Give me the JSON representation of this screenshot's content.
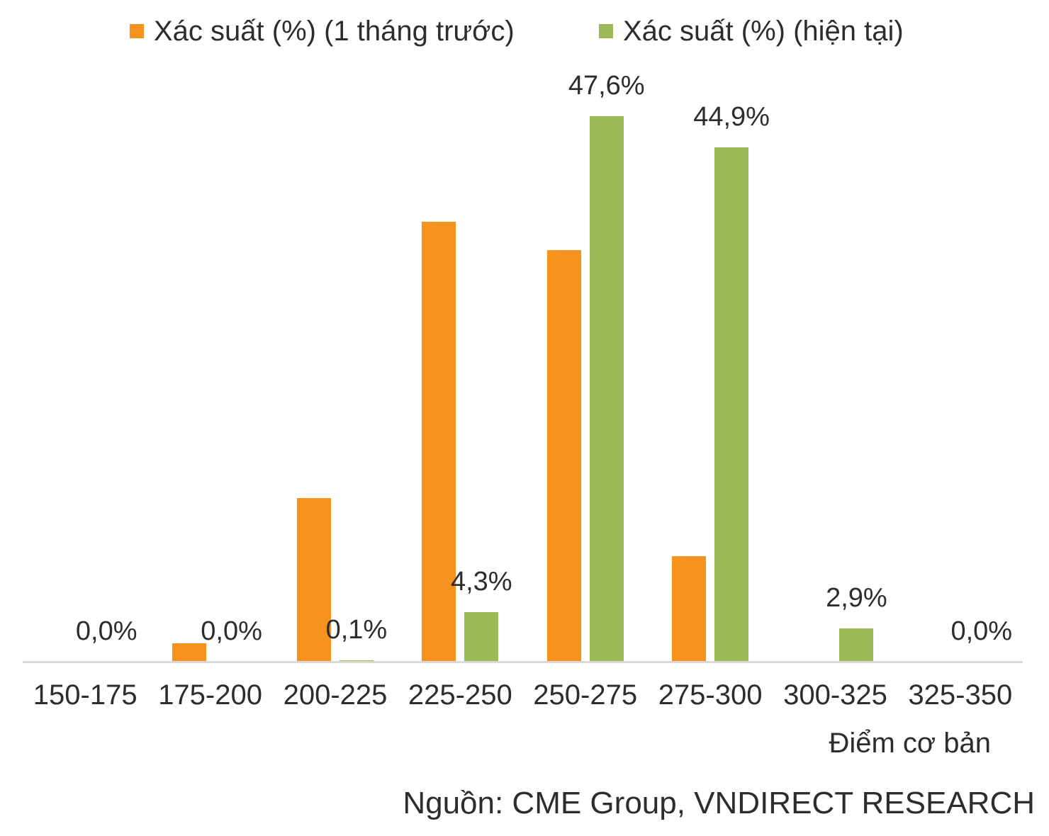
{
  "legend": [
    {
      "label": "Xác suất (%) (1 tháng trước)",
      "color": "#F6921E"
    },
    {
      "label": "Xác suất (%) (hiện tại)",
      "color": "#9BBB59"
    }
  ],
  "chart_data": {
    "type": "bar",
    "categories": [
      "150-175",
      "175-200",
      "200-225",
      "225-250",
      "250-275",
      "275-300",
      "300-325",
      "325-350"
    ],
    "series": [
      {
        "name": "Xác suất (%) (1 tháng trước)",
        "color": "#F6921E",
        "show_labels": false,
        "values": [
          0.0,
          1.6,
          14.3,
          38.4,
          35.9,
          9.2,
          0.0,
          0.0
        ]
      },
      {
        "name": "Xác suất (%) (hiện tại)",
        "color": "#9BBB59",
        "show_labels": true,
        "values": [
          0.0,
          0.0,
          0.1,
          4.3,
          47.6,
          44.9,
          2.9,
          0.0
        ],
        "labels": [
          "0,0%",
          "0,0%",
          "0,1%",
          "4,3%",
          "47,6%",
          "44,9%",
          "2,9%",
          "0,0%"
        ]
      }
    ],
    "xlabel": "Điểm cơ bản",
    "ylabel": "",
    "ylim": [
      0,
      50
    ],
    "grid": false,
    "legend_position": "top"
  },
  "source_note": "Nguồn: CME Group, VNDIRECT RESEARCH"
}
